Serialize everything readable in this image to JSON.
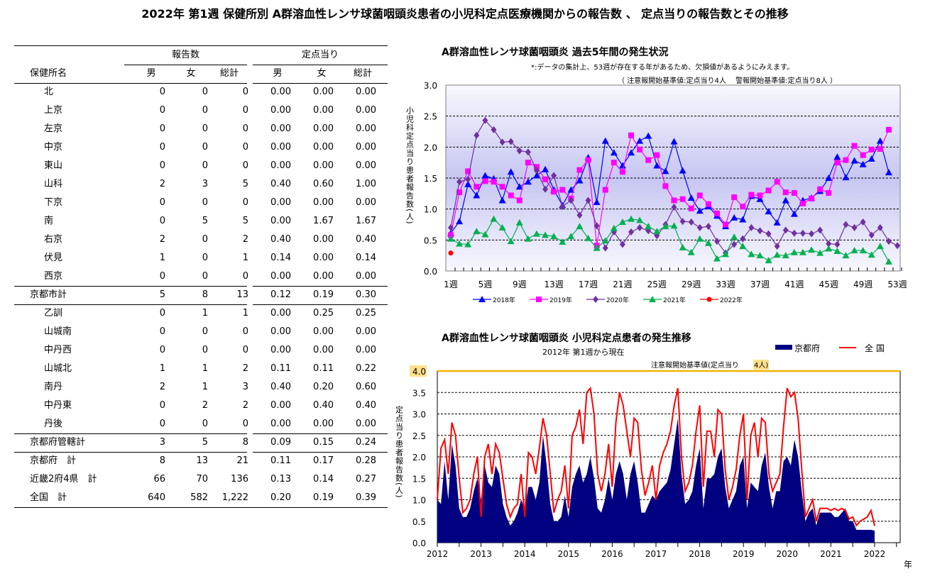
{
  "title": "2022年 第1週 保健所別 A群溶血性レンサ球菌咽頭炎患者の小児科定点医療機関からの報告数 、 定点当りの報告数とその推移",
  "table": {
    "group_headers": [
      "報告数",
      "定点当り"
    ],
    "name_header": "保健所名",
    "sub_headers": [
      "男",
      "女",
      "総計",
      "男",
      "女",
      "総計"
    ],
    "rows": [
      {
        "name": "北",
        "indent": true,
        "values": [
          "0",
          "0",
          "0",
          "0.00",
          "0.00",
          "0.00"
        ]
      },
      {
        "name": "上京",
        "indent": true,
        "values": [
          "0",
          "0",
          "0",
          "0.00",
          "0.00",
          "0.00"
        ]
      },
      {
        "name": "左京",
        "indent": true,
        "values": [
          "0",
          "0",
          "0",
          "0.00",
          "0.00",
          "0.00"
        ]
      },
      {
        "name": "中京",
        "indent": true,
        "values": [
          "0",
          "0",
          "0",
          "0.00",
          "0.00",
          "0.00"
        ]
      },
      {
        "name": "東山",
        "indent": true,
        "values": [
          "0",
          "0",
          "0",
          "0.00",
          "0.00",
          "0.00"
        ]
      },
      {
        "name": "山科",
        "indent": true,
        "values": [
          "2",
          "3",
          "5",
          "0.40",
          "0.60",
          "1.00"
        ]
      },
      {
        "name": "下京",
        "indent": true,
        "values": [
          "0",
          "0",
          "0",
          "0.00",
          "0.00",
          "0.00"
        ]
      },
      {
        "name": "南",
        "indent": true,
        "values": [
          "0",
          "5",
          "5",
          "0.00",
          "1.67",
          "1.67"
        ]
      },
      {
        "name": "右京",
        "indent": true,
        "values": [
          "2",
          "0",
          "2",
          "0.40",
          "0.00",
          "0.40"
        ]
      },
      {
        "name": "伏見",
        "indent": true,
        "values": [
          "1",
          "0",
          "1",
          "0.14",
          "0.00",
          "0.14"
        ]
      },
      {
        "name": "西京",
        "indent": true,
        "values": [
          "0",
          "0",
          "0",
          "0.00",
          "0.00",
          "0.00"
        ]
      },
      {
        "name": "京都市計",
        "indent": false,
        "values": [
          "5",
          "8",
          "13",
          "0.12",
          "0.19",
          "0.30"
        ]
      },
      {
        "name": "乙訓",
        "indent": true,
        "values": [
          "0",
          "1",
          "1",
          "0.00",
          "0.25",
          "0.25"
        ]
      },
      {
        "name": "山城南",
        "indent": true,
        "values": [
          "0",
          "0",
          "0",
          "0.00",
          "0.00",
          "0.00"
        ]
      },
      {
        "name": "中丹西",
        "indent": true,
        "values": [
          "0",
          "0",
          "0",
          "0.00",
          "0.00",
          "0.00"
        ]
      },
      {
        "name": "山城北",
        "indent": true,
        "values": [
          "1",
          "1",
          "2",
          "0.11",
          "0.11",
          "0.22"
        ]
      },
      {
        "name": "南丹",
        "indent": true,
        "values": [
          "2",
          "1",
          "3",
          "0.40",
          "0.20",
          "0.60"
        ]
      },
      {
        "name": "中丹東",
        "indent": true,
        "values": [
          "0",
          "2",
          "2",
          "0.00",
          "0.40",
          "0.40"
        ]
      },
      {
        "name": "丹後",
        "indent": true,
        "values": [
          "0",
          "0",
          "0",
          "0.00",
          "0.00",
          "0.00"
        ]
      },
      {
        "name": "京都府管轄計",
        "indent": false,
        "values": [
          "3",
          "5",
          "8",
          "0.09",
          "0.15",
          "0.24"
        ]
      },
      {
        "name": "京都府　計",
        "indent": false,
        "values": [
          "8",
          "13",
          "21",
          "0.11",
          "0.17",
          "0.28"
        ]
      },
      {
        "name": "近畿2府4県　計",
        "indent": false,
        "values": [
          "66",
          "70",
          "136",
          "0.13",
          "0.14",
          "0.27"
        ]
      },
      {
        "name": "全国　計",
        "indent": false,
        "values": [
          "640",
          "582",
          "1,222",
          "0.20",
          "0.19",
          "0.39"
        ]
      }
    ]
  },
  "chart_data": [
    {
      "type": "line",
      "title": "A群溶血性レンサ球菌咽頭炎 過去5年間の発生状況",
      "note": "*:データの集計上、53週が存在する年があるため、欠損値があるようにみえます。",
      "thresholds_note": "（ 注意報開始基準値:定点当り4人　 警報開始基準値:定点当り8人 ）",
      "ylabel": "小児科定点当り患者報告数(人)",
      "ylim": [
        0,
        3.0
      ],
      "yticks": [
        "0.0",
        "0.5",
        "1.0",
        "1.5",
        "2.0",
        "2.5",
        "3.0"
      ],
      "xlim": [
        1,
        53
      ],
      "xticks": [
        "1週",
        "5週",
        "9週",
        "13週",
        "17週",
        "21週",
        "25週",
        "29週",
        "33週",
        "37週",
        "41週",
        "45週",
        "49週",
        "53週"
      ],
      "grid": true,
      "legend": "bottom",
      "series": [
        {
          "name": "2018年",
          "color": "#0000ff",
          "marker": "triangle",
          "values": [
            0.61,
            0.8,
            1.4,
            1.22,
            1.54,
            1.49,
            1.14,
            1.6,
            1.36,
            1.44,
            1.54,
            1.64,
            1.31,
            1.06,
            1.31,
            1.46,
            1.83,
            1.11,
            2.1,
            1.91,
            1.7,
            1.91,
            2.1,
            2.18,
            1.7,
            1.61,
            2.09,
            1.62,
            1.18,
            0.97,
            1.04,
            0.89,
            0.72,
            0.86,
            0.83,
            1.21,
            1.16,
            0.96,
            0.78,
            1.14,
            0.92,
            1.14,
            1.18,
            1.29,
            1.5,
            1.84,
            1.51,
            1.78,
            1.72,
            1.81,
            2.1,
            1.59
          ]
        },
        {
          "name": "2019年",
          "color": "#ff00ff",
          "marker": "square",
          "values": [
            0.58,
            1.27,
            1.61,
            1.36,
            1.45,
            1.44,
            1.36,
            1.22,
            1.14,
            1.75,
            1.68,
            1.48,
            1.28,
            1.31,
            1.17,
            1.63,
            1.79,
            0.41,
            1.31,
            1.75,
            1.6,
            2.19,
            1.96,
            1.79,
            1.87,
            1.37,
            1.14,
            1.16,
            1.01,
            1.22,
            1.08,
            0.93,
            0.75,
            1.19,
            1.04,
            1.23,
            1.22,
            1.3,
            1.44,
            1.27,
            1.26,
            1.09,
            1.17,
            1.32,
            1.26,
            1.75,
            1.79,
            2.02,
            1.87,
            1.96,
            1.97,
            2.28
          ]
        },
        {
          "name": "2020年",
          "color": "#7030a0",
          "marker": "diamond",
          "values": [
            0.7,
            1.44,
            1.48,
            2.19,
            2.43,
            2.28,
            2.08,
            2.09,
            1.94,
            1.92,
            1.62,
            1.32,
            1.54,
            1.04,
            1.14,
            0.9,
            1.14,
            0.73,
            0.37,
            0.63,
            0.43,
            0.63,
            0.7,
            0.65,
            0.57,
            0.75,
            1.03,
            0.8,
            0.79,
            0.7,
            0.72,
            0.48,
            0.29,
            0.43,
            0.52,
            0.7,
            0.65,
            0.6,
            0.4,
            0.66,
            0.61,
            0.61,
            0.6,
            0.66,
            0.44,
            0.43,
            0.75,
            0.7,
            0.79,
            0.58,
            0.7,
            0.48,
            0.41
          ]
        },
        {
          "name": "2021年",
          "color": "#00b050",
          "marker": "triangle",
          "values": [
            0.52,
            0.44,
            0.43,
            0.64,
            0.59,
            0.84,
            0.7,
            0.48,
            0.78,
            0.52,
            0.6,
            0.58,
            0.56,
            0.47,
            0.56,
            0.72,
            0.53,
            0.37,
            0.49,
            0.69,
            0.79,
            0.84,
            0.82,
            0.72,
            0.64,
            0.72,
            0.73,
            0.38,
            0.3,
            0.52,
            0.45,
            0.2,
            0.27,
            0.55,
            0.4,
            0.27,
            0.25,
            0.17,
            0.26,
            0.25,
            0.3,
            0.3,
            0.34,
            0.29,
            0.36,
            0.32,
            0.25,
            0.33,
            0.33,
            0.26,
            0.4,
            0.15
          ]
        },
        {
          "name": "2022年",
          "color": "#ff0000",
          "marker": "circle",
          "values": [
            0.29
          ]
        }
      ]
    },
    {
      "type": "area",
      "title": "A群溶血性レンサ球菌咽頭炎 小児科定点患者の発生推移",
      "subtitle": "2012年 第1週から現在",
      "threshold_label": "注意報開始基準値(定点当り",
      "threshold_value_label": "4人)",
      "threshold": 4.0,
      "threshold_color": "#f0b400",
      "ylabel": "定点当り患者報告数(人)",
      "xlabel": "年",
      "ylim": [
        0,
        4.0
      ],
      "yticks": [
        "0.0",
        "0.5",
        "1.0",
        "1.5",
        "2.0",
        "2.5",
        "3.0",
        "3.5",
        "4.0"
      ],
      "xticks": [
        "2012",
        "2013",
        "2014",
        "2015",
        "2016",
        "2017",
        "2018",
        "2019",
        "2020",
        "2021",
        "2022"
      ],
      "grid": true,
      "legend": "top-right",
      "series": [
        {
          "name": "京都府",
          "color": "#000080",
          "style": "area",
          "monthly": {
            "2012": [
              1.0,
              0.9,
              1.9,
              1.0,
              2.3,
              1.8,
              0.8,
              0.6,
              0.6,
              0.8,
              1.2,
              1.5
            ],
            "2013": [
              1.0,
              1.8,
              1.4,
              1.3,
              1.8,
              1.6,
              0.9,
              0.6,
              0.4,
              0.5,
              0.7,
              1.0
            ],
            "2014": [
              0.8,
              1.3,
              1.3,
              1.0,
              1.4,
              2.5,
              1.8,
              0.9,
              0.5,
              0.5,
              0.6,
              1.1
            ],
            "2015": [
              0.6,
              1.3,
              1.6,
              1.8,
              1.4,
              1.6,
              2.0,
              1.5,
              0.8,
              0.7,
              1.0,
              1.5
            ],
            "2016": [
              1.0,
              1.6,
              1.9,
              1.6,
              1.0,
              1.6,
              1.9,
              1.4,
              0.7,
              0.7,
              0.9,
              1.1
            ],
            "2017": [
              1.0,
              1.2,
              1.3,
              1.4,
              1.7,
              2.3,
              2.9,
              1.6,
              0.9,
              1.0,
              1.2,
              1.8
            ],
            "2018": [
              2.2,
              0.8,
              1.5,
              1.5,
              1.6,
              2.0,
              2.2,
              1.3,
              0.8,
              1.0,
              1.2,
              1.8
            ],
            "2019": [
              2.0,
              0.8,
              1.4,
              1.3,
              1.2,
              1.8,
              2.1,
              1.3,
              0.8,
              1.2,
              1.2,
              1.9
            ],
            "2020": [
              2.0,
              1.8,
              2.4,
              2.0,
              1.2,
              0.5,
              0.7,
              0.8,
              0.4,
              0.7,
              0.7,
              0.7
            ],
            "2021": [
              0.7,
              0.6,
              0.6,
              0.7,
              0.8,
              0.5,
              0.5,
              0.3,
              0.3,
              0.3,
              0.3,
              0.3
            ],
            "2022": [
              0.28
            ]
          }
        },
        {
          "name": "全 国",
          "color": "#ff0000",
          "style": "line",
          "monthly": {
            "2012": [
              1.0,
              2.2,
              2.4,
              1.6,
              2.8,
              2.5,
              1.5,
              0.7,
              0.8,
              1.0,
              1.6,
              2.0
            ],
            "2013": [
              0.6,
              2.0,
              2.3,
              1.6,
              2.3,
              2.1,
              1.5,
              0.9,
              0.6,
              0.8,
              0.9,
              1.6
            ],
            "2014": [
              0.6,
              2.1,
              2.0,
              1.6,
              2.2,
              2.9,
              2.5,
              1.6,
              0.7,
              1.0,
              1.2,
              1.8
            ],
            "2015": [
              0.8,
              2.5,
              2.7,
              3.1,
              2.3,
              3.5,
              3.6,
              3.0,
              1.6,
              1.2,
              1.6,
              2.3
            ],
            "2016": [
              1.3,
              2.8,
              3.5,
              3.2,
              2.6,
              2.0,
              2.9,
              2.8,
              1.7,
              1.1,
              1.4,
              1.8
            ],
            "2017": [
              1.0,
              1.8,
              2.1,
              2.3,
              2.6,
              3.2,
              3.6,
              2.0,
              1.2,
              1.4,
              1.8,
              2.6
            ],
            "2018": [
              3.2,
              1.3,
              2.6,
              2.6,
              2.0,
              3.1,
              3.0,
              1.7,
              1.0,
              1.3,
              1.7,
              2.5
            ],
            "2019": [
              3.0,
              1.0,
              2.5,
              2.8,
              2.0,
              2.9,
              2.8,
              1.6,
              1.2,
              1.4,
              1.6,
              2.7
            ],
            "2020": [
              3.6,
              3.4,
              3.5,
              2.9,
              1.7,
              0.6,
              0.8,
              1.0,
              0.5,
              0.8,
              0.8,
              0.8
            ],
            "2021": [
              0.75,
              0.8,
              0.75,
              0.8,
              0.75,
              0.55,
              0.6,
              0.4,
              0.5,
              0.55,
              0.6,
              0.75
            ],
            "2022": [
              0.39
            ]
          }
        }
      ]
    }
  ]
}
